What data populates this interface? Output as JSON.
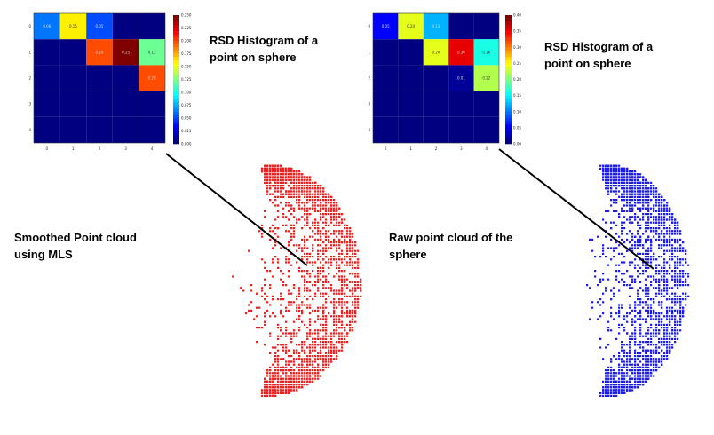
{
  "colors": {
    "red_cloud": "#ff1a1a",
    "blue_cloud": "#1a1aff",
    "leader": "#000000"
  },
  "left_panel": {
    "heatmap_caption": "RSD Histogram of a point on sphere",
    "cloud_caption": "Smoothed Point cloud using MLS",
    "colorbar_ticks": [
      "0.250",
      "0.225",
      "0.200",
      "0.175",
      "0.150",
      "0.125",
      "0.100",
      "0.075",
      "0.050",
      "0.025",
      "0.000"
    ],
    "x_ticks": [
      "0",
      "1",
      "2",
      "3",
      "4"
    ],
    "y_ticks": [
      "0",
      "1",
      "2",
      "3",
      "4"
    ]
  },
  "right_panel": {
    "heatmap_caption": "RSD Histogram of a point on sphere",
    "cloud_caption": "Raw point cloud of the sphere",
    "colorbar_ticks": [
      "0.40",
      "0.35",
      "0.30",
      "0.25",
      "0.20",
      "0.15",
      "0.10",
      "0.05",
      "0.00"
    ],
    "x_ticks": [
      "0",
      "1",
      "2",
      "3",
      "4"
    ],
    "y_ticks": [
      "0",
      "1",
      "2",
      "3",
      "4"
    ]
  },
  "chart_data": [
    {
      "type": "heatmap",
      "rows": 5,
      "cols": 5,
      "vmax": 0.25,
      "values": [
        [
          0.06,
          0.16,
          0.05,
          0.0,
          0.0
        ],
        [
          0.0,
          0.0,
          0.2,
          0.25,
          0.12
        ],
        [
          0.0,
          0.0,
          0.0,
          0.0,
          0.2
        ],
        [
          0.0,
          0.0,
          0.0,
          0.0,
          0.0
        ],
        [
          0.0,
          0.0,
          0.0,
          0.0,
          0.0
        ]
      ],
      "cell_labels": [
        [
          "0.06",
          "0.16",
          "0.05",
          "",
          ""
        ],
        [
          "",
          "",
          "0.20",
          "0.25",
          "0.12"
        ],
        [
          "",
          "",
          "",
          "",
          "0.20"
        ],
        [
          "",
          "",
          "",
          "",
          ""
        ],
        [
          "",
          "",
          "",
          "",
          ""
        ]
      ]
    },
    {
      "type": "heatmap",
      "rows": 5,
      "cols": 5,
      "vmax": 0.4,
      "values": [
        [
          0.05,
          0.24,
          0.12,
          0.0,
          0.0
        ],
        [
          0.0,
          0.0,
          0.24,
          0.36,
          0.16
        ],
        [
          0.0,
          0.0,
          0.0,
          0.01,
          0.22
        ],
        [
          0.0,
          0.0,
          0.0,
          0.0,
          0.0
        ],
        [
          0.0,
          0.0,
          0.0,
          0.0,
          0.0
        ]
      ],
      "cell_labels": [
        [
          "0.05",
          "0.24",
          "0.12",
          "",
          ""
        ],
        [
          "",
          "",
          "0.24",
          "0.36",
          "0.16"
        ],
        [
          "",
          "",
          "",
          "0.01",
          "0.22"
        ],
        [
          "",
          "",
          "",
          "",
          ""
        ],
        [
          "",
          "",
          "",
          "",
          ""
        ]
      ]
    }
  ]
}
